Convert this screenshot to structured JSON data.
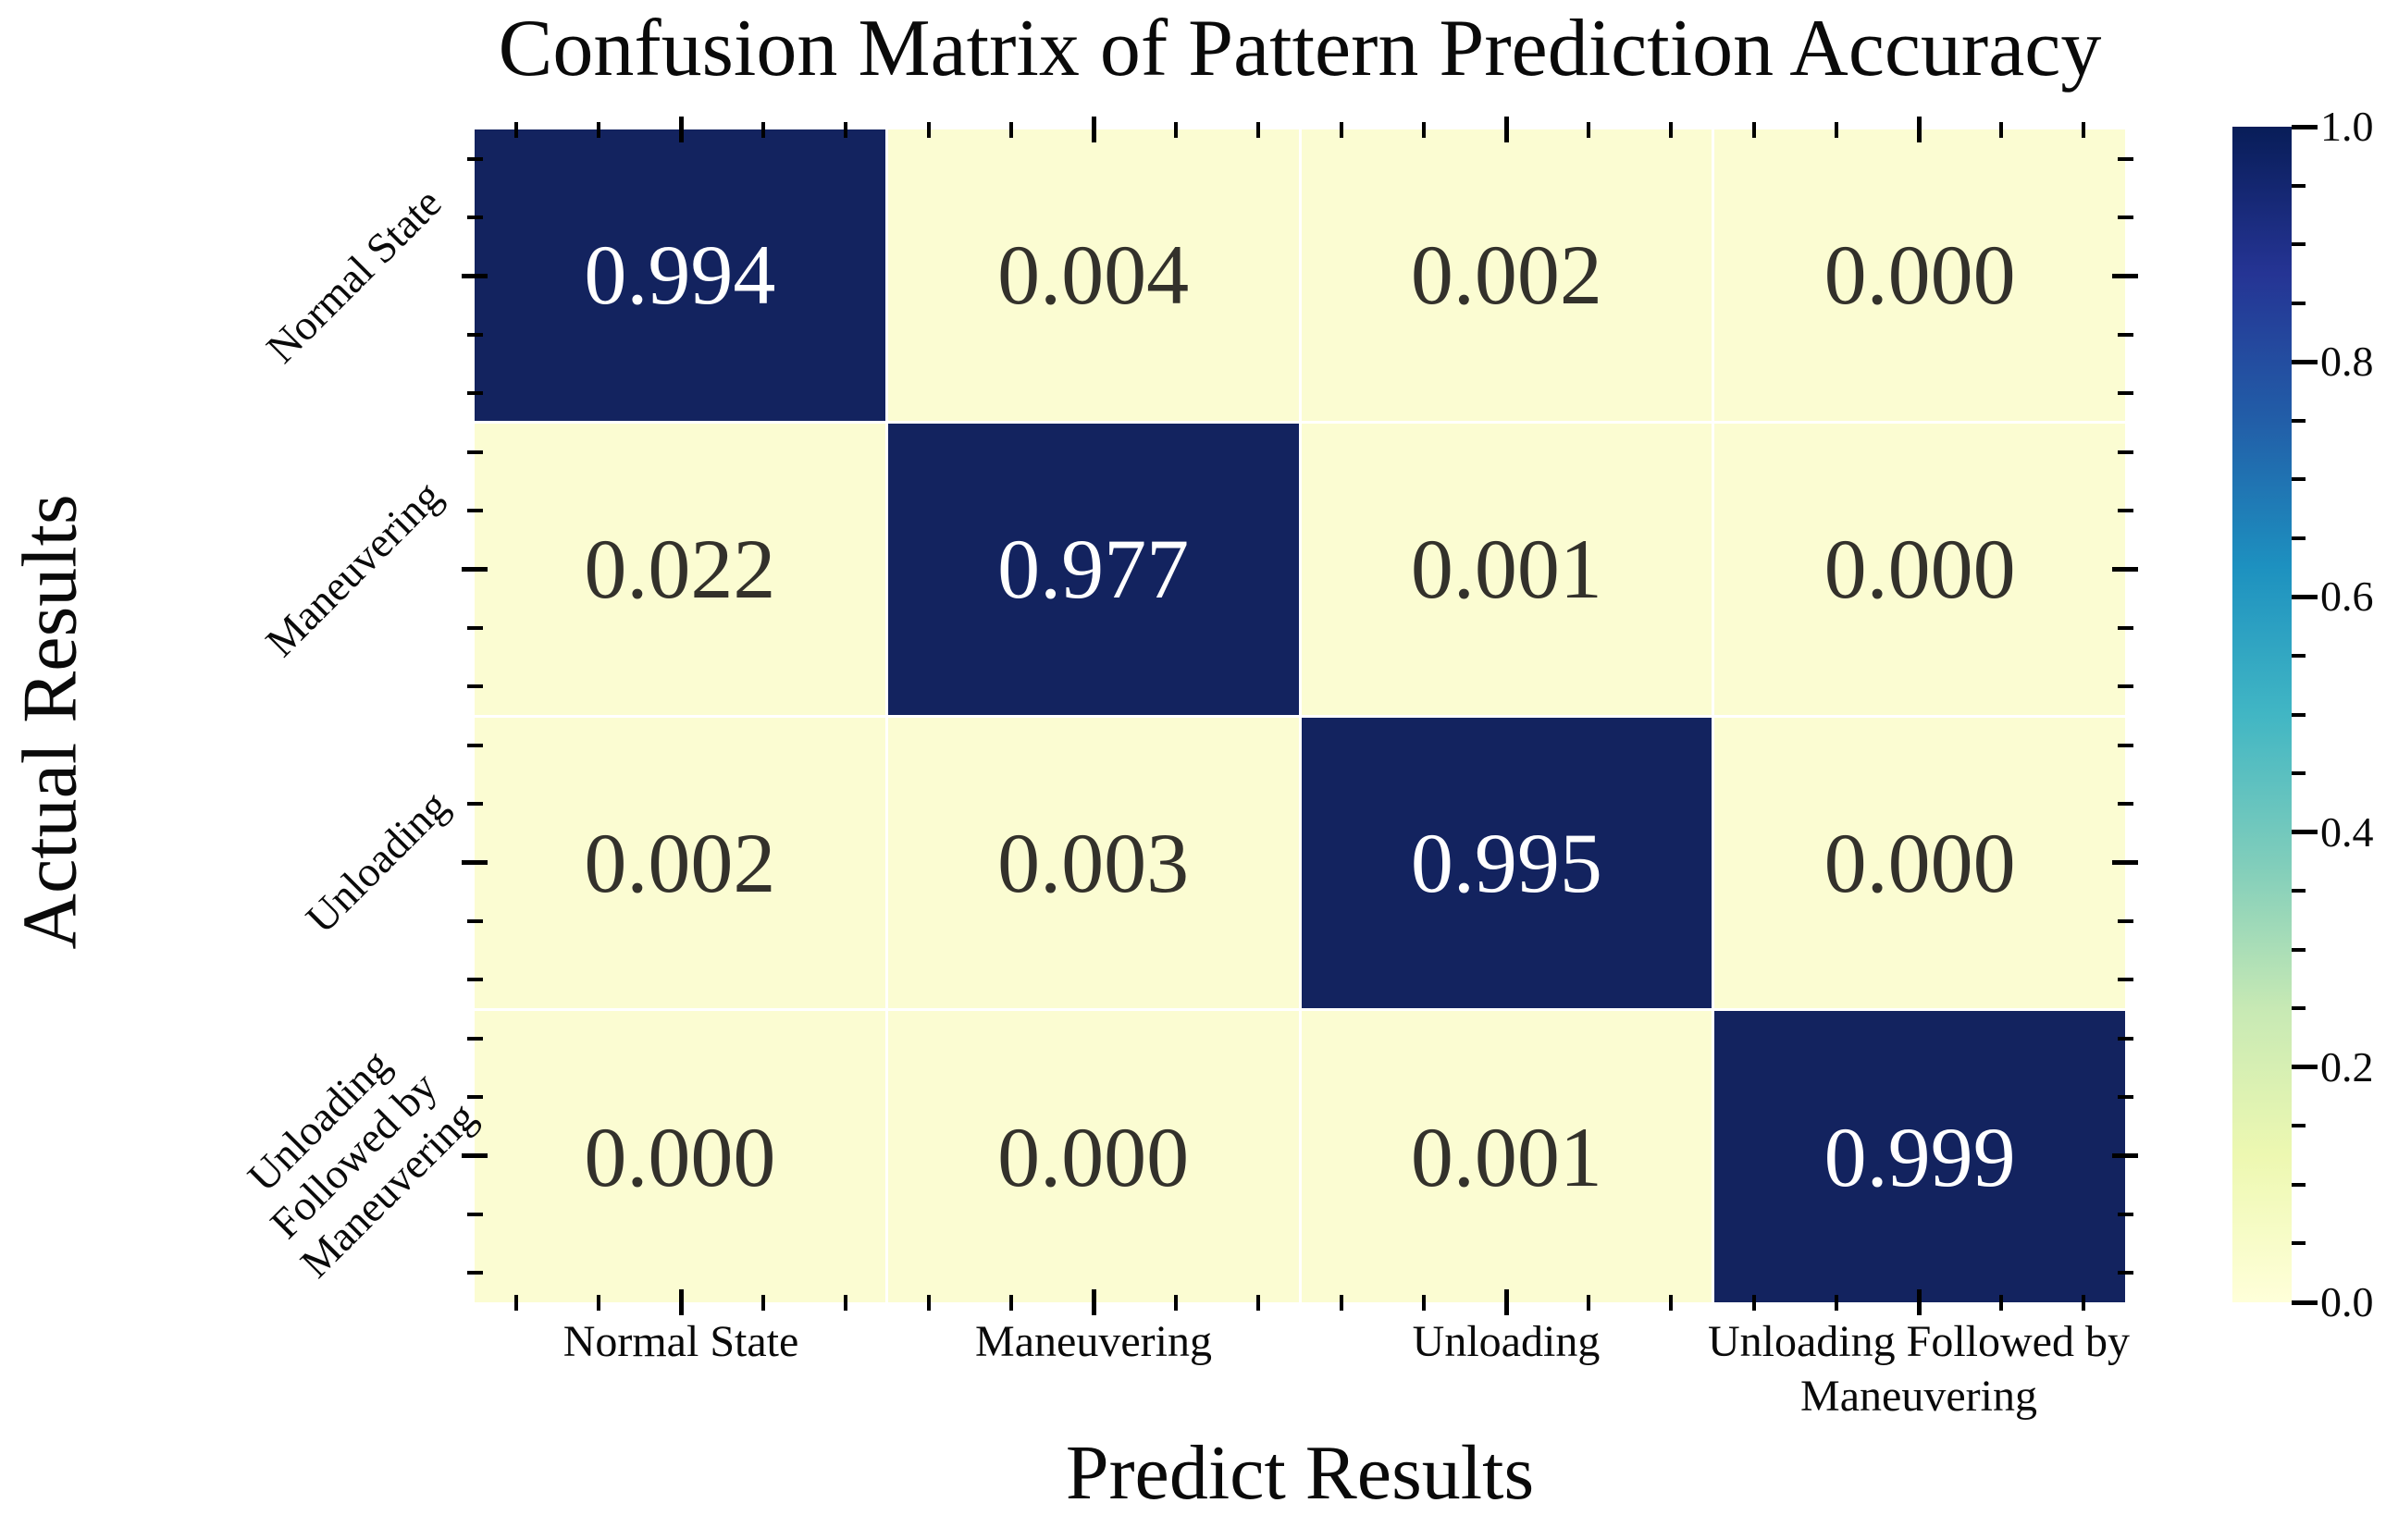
{
  "title": "Confusion Matrix of Pattern Prediction Accuracy",
  "chart_data": {
    "type": "heatmap",
    "title": "Confusion Matrix of Pattern Prediction Accuracy",
    "xlabel": "Predict Results",
    "ylabel": "Actual Results",
    "x_categories": [
      "Normal State",
      "Maneuvering",
      "Unloading",
      "Unloading Followed by\nManeuvering"
    ],
    "y_categories": [
      "Normal State",
      "Maneuvering",
      "Unloading",
      "Unloading\nFollowed by\nManeuvering"
    ],
    "cells": [
      [
        "0.994",
        "0.004",
        "0.002",
        "0.000"
      ],
      [
        "0.022",
        "0.977",
        "0.001",
        "0.000"
      ],
      [
        "0.002",
        "0.003",
        "0.995",
        "0.000"
      ],
      [
        "0.000",
        "0.000",
        "0.001",
        "0.999"
      ]
    ],
    "value_range": [
      0.0,
      1.0
    ],
    "grid": false,
    "legend_position": "right-colorbar",
    "colorbar": {
      "tick_labels": [
        "1.0",
        "0.8",
        "0.6",
        "0.4",
        "0.2",
        "0.0"
      ],
      "min_label": "0.0",
      "max_label": "1.0"
    },
    "colors": {
      "cell_high": "#13235f",
      "cell_low": "#fbfcd2",
      "text_on_high": "#ffffff",
      "text_on_low": "#33312b",
      "tick_color": "#000000",
      "colormap_name": "YlGnBu",
      "colormap_stops": [
        {
          "pos": 0.0,
          "color": "#ffffd9"
        },
        {
          "pos": 0.125,
          "color": "#edf8b1"
        },
        {
          "pos": 0.25,
          "color": "#c7e9b4"
        },
        {
          "pos": 0.375,
          "color": "#7fcdbb"
        },
        {
          "pos": 0.5,
          "color": "#41b6c4"
        },
        {
          "pos": 0.625,
          "color": "#1d91c0"
        },
        {
          "pos": 0.75,
          "color": "#225ea8"
        },
        {
          "pos": 0.875,
          "color": "#253494"
        },
        {
          "pos": 1.0,
          "color": "#081d58"
        }
      ]
    }
  }
}
